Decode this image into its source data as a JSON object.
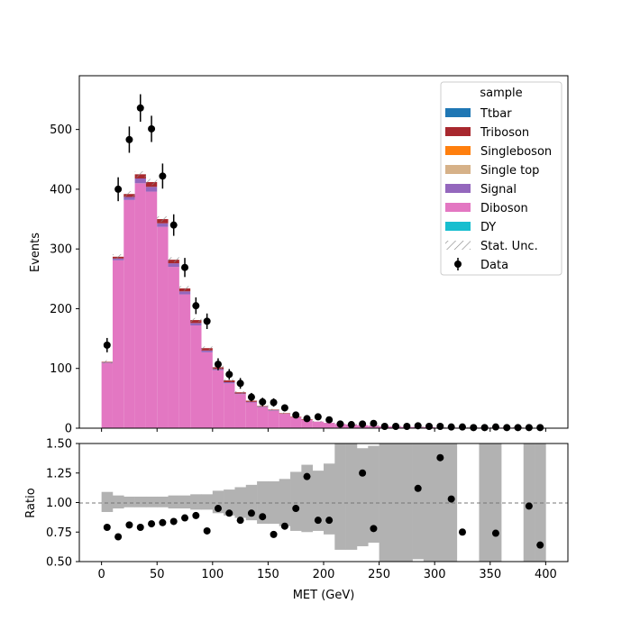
{
  "colors": {
    "Ttbar": "#1f77b4",
    "Triboson": "#a8282e",
    "Singleboson": "#ff7f0e",
    "Single top": "#d6b188",
    "Signal": "#9467bd",
    "Diboson": "#e377c2",
    "DY": "#17becf",
    "stat_unc": "#888888",
    "ratio_band": "#b2b2b2",
    "data": "#000000"
  },
  "chart_data": [
    {
      "type": "bar",
      "panel": "main",
      "stacked": true,
      "histtype": "step-filled stacked histogram",
      "xlim": [
        -20,
        420
      ],
      "ylim": [
        0,
        590
      ],
      "ylabel": "Events",
      "yticks": [
        0,
        100,
        200,
        300,
        400,
        500
      ],
      "bin_edges": [
        0,
        10,
        20,
        30,
        40,
        50,
        60,
        70,
        80,
        90,
        100,
        110,
        120,
        130,
        140,
        150,
        160,
        170,
        180,
        190,
        200,
        210,
        220,
        230,
        240,
        250,
        260,
        270,
        280,
        290,
        300,
        310,
        320,
        330,
        340,
        350,
        360,
        370,
        380,
        390,
        400
      ],
      "series": [
        {
          "name": "Diboson",
          "values": [
            109,
            281,
            382,
            410,
            396,
            337,
            270,
            224,
            172,
            127,
            97,
            75,
            57,
            43,
            35,
            29,
            24,
            18,
            14,
            11,
            9,
            7,
            6,
            5,
            4,
            3,
            3,
            2,
            2,
            2,
            1,
            1,
            1,
            1,
            1,
            1,
            1,
            1,
            0,
            0
          ]
        },
        {
          "name": "Signal",
          "values": [
            1,
            3,
            5,
            8,
            8,
            6,
            6,
            5,
            4,
            3,
            2,
            2,
            1,
            1,
            1,
            1,
            0,
            0,
            0,
            0,
            0,
            0,
            0,
            0,
            0,
            0,
            0,
            0,
            0,
            0,
            0,
            0,
            0,
            0,
            0,
            0,
            0,
            0,
            0,
            0
          ]
        },
        {
          "name": "Triboson",
          "values": [
            1,
            3,
            5,
            7,
            8,
            7,
            6,
            5,
            5,
            4,
            3,
            3,
            2,
            2,
            1,
            1,
            1,
            1,
            1,
            0,
            0,
            0,
            0,
            0,
            0,
            0,
            0,
            0,
            0,
            0,
            0,
            0,
            0,
            0,
            0,
            0,
            0,
            0,
            0,
            0
          ]
        }
      ],
      "legend": {
        "title": "sample",
        "entries": [
          "Ttbar",
          "Triboson",
          "Singleboson",
          "Single top",
          "Signal",
          "Diboson",
          "DY",
          "Stat. Unc.",
          "Data"
        ],
        "location": "upper right"
      },
      "data_points": {
        "name": "Data",
        "x": [
          5,
          15,
          25,
          35,
          45,
          55,
          65,
          75,
          85,
          95,
          105,
          115,
          125,
          135,
          145,
          155,
          165,
          175,
          185,
          195,
          205,
          215,
          225,
          235,
          245,
          255,
          265,
          275,
          285,
          295,
          305,
          315,
          325,
          335,
          345,
          355,
          365,
          375,
          385,
          395
        ],
        "y": [
          139,
          400,
          483,
          536,
          501,
          422,
          340,
          269,
          205,
          179,
          107,
          90,
          75,
          52,
          44,
          43,
          34,
          22,
          16,
          19,
          14,
          7,
          6,
          7,
          8,
          3,
          3,
          3,
          4,
          3,
          3,
          2,
          2,
          1,
          1,
          2,
          1,
          1,
          1,
          1
        ],
        "yerr": [
          12,
          20,
          22,
          23,
          22,
          21,
          18,
          16,
          14,
          13,
          10,
          9,
          9,
          7,
          7,
          7,
          6,
          5,
          4,
          4,
          4,
          3,
          2,
          3,
          3,
          2,
          2,
          2,
          2,
          2,
          2,
          1,
          1,
          1,
          1,
          1,
          1,
          1,
          1,
          1
        ]
      }
    },
    {
      "type": "scatter",
      "panel": "ratio",
      "xlabel": "MET (GeV)",
      "ylabel": "Ratio",
      "ylim": [
        0.5,
        1.5
      ],
      "yticks": [
        "0.50",
        "0.75",
        "1.00",
        "1.25",
        "1.50"
      ],
      "xticks": [
        0,
        50,
        100,
        150,
        200,
        250,
        300,
        350,
        400
      ],
      "reference_line": 1.0,
      "band_lo": [
        0.92,
        0.95,
        0.96,
        0.96,
        0.96,
        0.96,
        0.95,
        0.95,
        0.94,
        0.94,
        0.91,
        0.89,
        0.87,
        0.85,
        0.82,
        0.82,
        0.8,
        0.76,
        0.75,
        0.76,
        0.73,
        0.6,
        0.6,
        0.63,
        0.66,
        0.5,
        0.5,
        0.5,
        0.52,
        0.5,
        0.5,
        0.5,
        null,
        null,
        0.5,
        0.5,
        null,
        null,
        0.5,
        0.5
      ],
      "band_hi": [
        1.09,
        1.06,
        1.05,
        1.05,
        1.05,
        1.05,
        1.06,
        1.06,
        1.07,
        1.07,
        1.1,
        1.11,
        1.13,
        1.15,
        1.18,
        1.18,
        1.2,
        1.26,
        1.32,
        1.27,
        1.33,
        1.5,
        1.5,
        1.46,
        1.48,
        1.5,
        1.5,
        1.5,
        1.5,
        1.5,
        1.5,
        1.5,
        null,
        null,
        1.5,
        1.5,
        null,
        null,
        1.5,
        1.5
      ],
      "x": [
        5,
        15,
        25,
        35,
        45,
        55,
        65,
        75,
        85,
        95,
        105,
        115,
        125,
        135,
        145,
        155,
        165,
        175,
        185,
        195,
        205,
        235,
        245,
        285,
        305,
        315,
        325,
        355,
        385,
        395
      ],
      "values": [
        0.79,
        0.71,
        0.81,
        0.79,
        0.82,
        0.83,
        0.84,
        0.87,
        0.89,
        0.76,
        0.95,
        0.91,
        0.85,
        0.91,
        0.88,
        0.73,
        0.8,
        0.95,
        1.22,
        0.85,
        0.85,
        1.25,
        0.78,
        1.12,
        1.38,
        1.03,
        0.75,
        0.74,
        0.97,
        0.64
      ]
    }
  ]
}
